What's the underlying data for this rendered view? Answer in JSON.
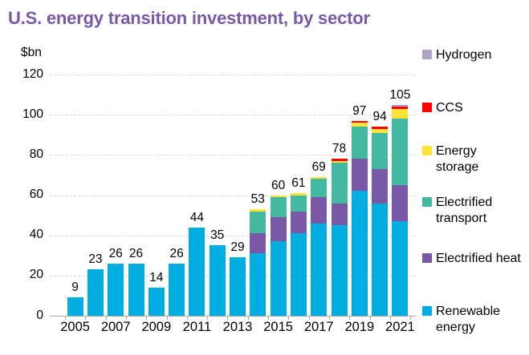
{
  "title": "U.S. energy transition investment, by sector",
  "y_axis_unit": "$bn",
  "colors": {
    "title": "#7759A8",
    "gridline": "#d9d9d9",
    "axis": "#a6a6a6",
    "renewable_energy": "#00ACE0",
    "electrified_heat": "#7A58A8",
    "electrified_transport": "#43B9A1",
    "energy_storage": "#FFE33A",
    "ccs": "#FF0000",
    "hydrogen": "#B3A2C7"
  },
  "chart_data": {
    "type": "bar",
    "stacked": true,
    "title": "U.S. energy transition investment, by sector",
    "xlabel": "",
    "ylabel": "$bn",
    "ylim": [
      0,
      120
    ],
    "y_ticks": [
      0,
      20,
      40,
      60,
      80,
      100,
      120
    ],
    "grid": "horizontal-dashed",
    "legend_position": "right",
    "categories": [
      "2005",
      "2006",
      "2007",
      "2008",
      "2009",
      "2010",
      "2011",
      "2012",
      "2013",
      "2014",
      "2015",
      "2016",
      "2017",
      "2018",
      "2019",
      "2020",
      "2021"
    ],
    "x_tick_labels": [
      "2005",
      "2007",
      "2009",
      "2011",
      "2013",
      "2015",
      "2017",
      "2019",
      "2021"
    ],
    "totals": [
      9,
      23,
      26,
      26,
      14,
      26,
      44,
      35,
      29,
      53,
      60,
      61,
      69,
      78,
      97,
      94,
      105
    ],
    "series": [
      {
        "name": "Renewable energy",
        "color": "#00ACE0",
        "values": [
          9,
          23,
          26,
          26,
          14,
          26,
          44,
          35,
          29,
          31,
          37,
          41,
          46,
          45,
          62,
          56,
          47
        ]
      },
      {
        "name": "Electrified heat",
        "color": "#7A58A8",
        "values": [
          0,
          0,
          0,
          0,
          0,
          0,
          0,
          0,
          0,
          10,
          12,
          11,
          13,
          11,
          16,
          17,
          18
        ]
      },
      {
        "name": "Electrified transport",
        "color": "#43B9A1",
        "values": [
          0,
          0,
          0,
          0,
          0,
          0,
          0,
          0,
          0,
          11,
          10,
          8,
          9,
          20,
          16,
          18,
          33
        ]
      },
      {
        "name": "Energy storage",
        "color": "#FFE33A",
        "values": [
          0,
          0,
          0,
          0,
          0,
          0,
          0,
          0,
          0,
          1,
          1,
          1,
          1,
          1,
          2,
          2,
          5
        ]
      },
      {
        "name": "CCS",
        "color": "#FF0000",
        "values": [
          0,
          0,
          0,
          0,
          0,
          0,
          0,
          0,
          0,
          0,
          0,
          0,
          0,
          1,
          1,
          1,
          1
        ]
      },
      {
        "name": "Hydrogen",
        "color": "#B3A2C7",
        "values": [
          0,
          0,
          0,
          0,
          0,
          0,
          0,
          0,
          0,
          0,
          0,
          0,
          0,
          0,
          0,
          0,
          1
        ]
      }
    ],
    "legend_order_top_to_bottom": [
      "Hydrogen",
      "CCS",
      "Energy storage",
      "Electrified transport",
      "Electrified heat",
      "Renewable energy"
    ]
  }
}
